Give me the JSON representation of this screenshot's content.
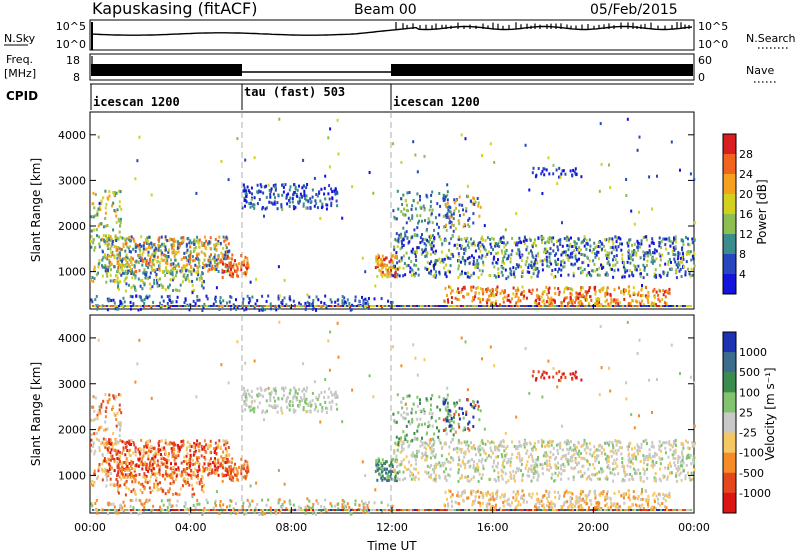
{
  "header": {
    "station": "Kapuskasing (fitACF)",
    "beam": "Beam 00",
    "date": "05/Feb/2015"
  },
  "strip_panels": {
    "nsky": {
      "label": "N.Sky",
      "ticks_left": [
        "10^5",
        "10^0"
      ],
      "ticks_right": [
        "10^5",
        "10^0"
      ],
      "right_label": "N.Search"
    },
    "freq": {
      "label_line1": "Freq.",
      "label_line2": "[MHz]",
      "ticks_left": [
        "18",
        "8"
      ],
      "ticks_right": [
        "60",
        "0"
      ],
      "right_label": "Nave"
    },
    "cpid": {
      "label": "CPID",
      "segments": [
        {
          "name": "icescan 1200",
          "start_hour": 0,
          "end_hour": 6
        },
        {
          "name": "tau (fast) 503",
          "start_hour": 6,
          "end_hour": 12
        },
        {
          "name": "icescan 1200",
          "start_hour": 12,
          "end_hour": 24
        }
      ]
    }
  },
  "chart_data": [
    {
      "type": "heatmap",
      "title": "",
      "xlabel": "",
      "ylabel": "Slant Range [km]",
      "xlim": [
        0,
        24
      ],
      "ylim": [
        180,
        4500
      ],
      "yticks": [
        1000,
        2000,
        3000,
        4000
      ],
      "colorbar": {
        "label": "Power [dB]",
        "ticks": [
          "28",
          "24",
          "20",
          "16",
          "12",
          "8",
          "4"
        ],
        "colors": [
          "#d81e1e",
          "#f0641e",
          "#f5a01e",
          "#d2d21e",
          "#8cbe50",
          "#3c8c8c",
          "#2846be",
          "#1414dc"
        ]
      }
    },
    {
      "type": "heatmap",
      "title": "",
      "xlabel": "Time UT",
      "ylabel": "Slant Range [km]",
      "xlim": [
        0,
        24
      ],
      "ylim": [
        180,
        4500
      ],
      "yticks": [
        1000,
        2000,
        3000,
        4000
      ],
      "xtick_labels": [
        "00:00",
        "04:00",
        "08:00",
        "12:00",
        "16:00",
        "20:00",
        "00:00"
      ],
      "colorbar": {
        "label": "Velocity [m s⁻¹]",
        "ticks": [
          "1000",
          "500",
          "100",
          "25",
          "-25",
          "-100",
          "-500",
          "-1000"
        ],
        "colors": [
          "#1e32b4",
          "#3c6e8c",
          "#3c8c50",
          "#82c36e",
          "#c8c8c8",
          "#f5c864",
          "#f58c28",
          "#e6461e",
          "#dc1414"
        ]
      }
    }
  ]
}
